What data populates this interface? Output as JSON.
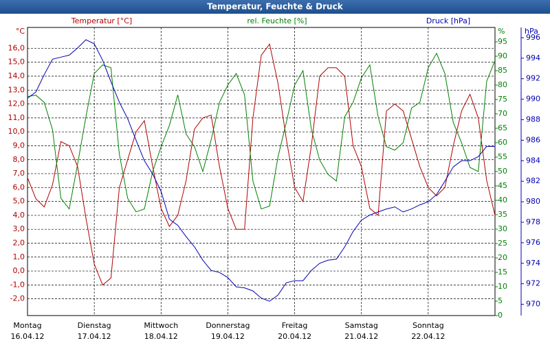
{
  "chart_data": {
    "type": "line",
    "title": "Temperatur, Feuchte & Druck",
    "y_unit": "°C",
    "y2_unit": "%",
    "y3_unit": "hPa",
    "x_ticks": [
      {
        "weekday": "Montag",
        "date": "16.04.12"
      },
      {
        "weekday": "Dienstag",
        "date": "17.04.12"
      },
      {
        "weekday": "Mittwoch",
        "date": "18.04.12"
      },
      {
        "weekday": "Donnerstag",
        "date": "19.04.12"
      },
      {
        "weekday": "Freitag",
        "date": "20.04.12"
      },
      {
        "weekday": "Samstag",
        "date": "21.04.12"
      },
      {
        "weekday": "Sonntag",
        "date": "22.04.12"
      }
    ],
    "grid": true,
    "ylim": [
      -3.2,
      17.5
    ],
    "yticks": [
      {
        "value": -2,
        "label": "-2,0"
      },
      {
        "value": -1,
        "label": "-1,0"
      },
      {
        "value": 0,
        "label": "0,0"
      },
      {
        "value": 1,
        "label": "1,0"
      },
      {
        "value": 2,
        "label": "2,0"
      },
      {
        "value": 3,
        "label": "3,0"
      },
      {
        "value": 4,
        "label": "4,0"
      },
      {
        "value": 5,
        "label": "5,0"
      },
      {
        "value": 6,
        "label": "6,0"
      },
      {
        "value": 7,
        "label": "7,0"
      },
      {
        "value": 8,
        "label": "8,0"
      },
      {
        "value": 9,
        "label": "9,0"
      },
      {
        "value": 10,
        "label": "10,0"
      },
      {
        "value": 11,
        "label": "11,0"
      },
      {
        "value": 12,
        "label": "12,0"
      },
      {
        "value": 13,
        "label": "13,0"
      },
      {
        "value": 14,
        "label": "14,0"
      },
      {
        "value": 15,
        "label": "15,0"
      },
      {
        "value": 16,
        "label": "16,0"
      }
    ],
    "y2lim": [
      0,
      100
    ],
    "y2ticks": [
      0,
      5,
      10,
      15,
      20,
      25,
      30,
      35,
      40,
      45,
      50,
      55,
      60,
      65,
      70,
      75,
      80,
      85,
      90,
      95
    ],
    "y3lim": [
      968.9,
      997.0
    ],
    "y3ticks": [
      970,
      972,
      974,
      976,
      978,
      980,
      982,
      984,
      986,
      988,
      990,
      992,
      994,
      996
    ],
    "series": [
      {
        "name": "Temperatur [°C]",
        "color": "#b00000",
        "axis": "y",
        "values": [
          6.7,
          5.2,
          4.6,
          6.2,
          9.3,
          9.0,
          7.5,
          3.8,
          0.5,
          -1.0,
          -0.5,
          6.0,
          8.0,
          10.0,
          10.8,
          7.5,
          4.5,
          3.2,
          4.0,
          6.5,
          10.2,
          11.0,
          11.2,
          7.5,
          4.5,
          3.0,
          3.0,
          11.0,
          15.5,
          16.3,
          13.5,
          9.5,
          6.0,
          5.0,
          9.0,
          14.0,
          14.6,
          14.6,
          14.0,
          9.0,
          7.5,
          4.5,
          4.0,
          11.5,
          12.0,
          11.5,
          9.5,
          7.5,
          6.0,
          5.4,
          6.0,
          9.0,
          11.5,
          12.7,
          11.0,
          6.5,
          4.0
        ]
      },
      {
        "name": "rel. Feuchte [%]",
        "color": "#008000",
        "axis": "y2",
        "values": [
          76,
          76.5,
          74,
          64.5,
          40.7,
          37,
          52.6,
          69,
          84,
          87,
          86,
          56,
          40.7,
          36,
          37,
          50,
          58.6,
          66,
          76.6,
          63,
          58.6,
          50,
          61,
          74,
          80,
          84,
          76.6,
          46.7,
          37,
          38,
          55,
          67,
          80,
          85,
          64.6,
          54,
          49,
          46.7,
          69,
          74,
          82.5,
          87,
          69,
          58.6,
          57.4,
          60,
          72,
          74,
          86,
          91,
          84,
          67,
          60,
          51.4,
          50,
          81.3,
          88.5
        ]
      },
      {
        "name": "Druck [hPa]",
        "color": "#0000b0",
        "axis": "y3",
        "values": [
          990.1,
          990.7,
          992.4,
          993.9,
          994.1,
          994.3,
          995.0,
          995.8,
          995.4,
          993.8,
          991.7,
          989.7,
          988.1,
          986.0,
          984.0,
          982.7,
          981.0,
          978.3,
          977.7,
          976.6,
          975.6,
          974.3,
          973.3,
          973.1,
          972.6,
          971.7,
          971.6,
          971.3,
          970.6,
          970.3,
          970.9,
          972.1,
          972.3,
          972.3,
          973.3,
          974.0,
          974.3,
          974.4,
          975.6,
          977.1,
          978.2,
          978.7,
          979.0,
          979.3,
          979.5,
          979.0,
          979.3,
          979.7,
          980.0,
          980.7,
          982.0,
          983.4,
          984.0,
          984.0,
          984.4,
          985.4,
          985.4
        ]
      }
    ]
  }
}
